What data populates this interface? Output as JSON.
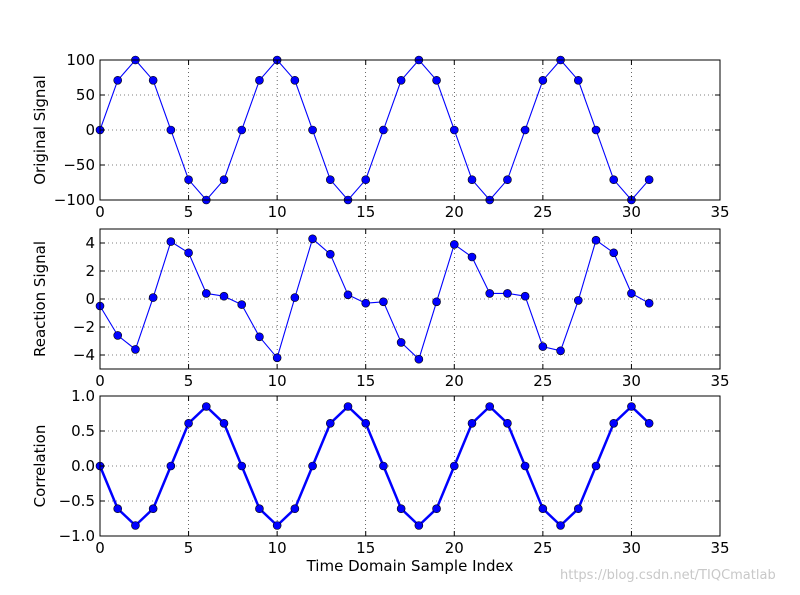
{
  "chart_data": [
    {
      "type": "line",
      "ylabel": "Original Signal",
      "xlabel": "",
      "xlim": [
        0,
        35
      ],
      "ylim": [
        -100,
        100
      ],
      "xticks": [
        0,
        5,
        10,
        15,
        20,
        25,
        30,
        35
      ],
      "yticks": [
        -100,
        -50,
        0,
        50,
        100
      ],
      "xtick_labels": [
        "0",
        "5",
        "10",
        "15",
        "20",
        "25",
        "30",
        "35"
      ],
      "ytick_labels": [
        "−100",
        "−50",
        "0",
        "50",
        "100"
      ],
      "grid": true,
      "series": [
        {
          "color": "#0000ff",
          "marker": "circle",
          "line_style": "thin",
          "x": [
            0,
            1,
            2,
            3,
            4,
            5,
            6,
            7,
            8,
            9,
            10,
            11,
            12,
            13,
            14,
            15,
            16,
            17,
            18,
            19,
            20,
            21,
            22,
            23,
            24,
            25,
            26,
            27,
            28,
            29,
            30,
            31
          ],
          "values": [
            0,
            71,
            100,
            71,
            0,
            -71,
            -100,
            -71,
            0,
            71,
            100,
            71,
            0,
            -71,
            -100,
            -71,
            0,
            71,
            100,
            71,
            0,
            -71,
            -100,
            -71,
            0,
            71,
            100,
            71,
            0,
            -71,
            -100,
            -71
          ]
        }
      ]
    },
    {
      "type": "line",
      "ylabel": "Reaction Signal",
      "xlabel": "",
      "xlim": [
        0,
        35
      ],
      "ylim": [
        -5,
        5
      ],
      "xticks": [
        0,
        5,
        10,
        15,
        20,
        25,
        30,
        35
      ],
      "yticks": [
        -4,
        -2,
        0,
        2,
        4
      ],
      "xtick_labels": [
        "0",
        "5",
        "10",
        "15",
        "20",
        "25",
        "30",
        "35"
      ],
      "ytick_labels": [
        "−4",
        "−2",
        "0",
        "2",
        "4"
      ],
      "grid": true,
      "series": [
        {
          "color": "#0000ff",
          "marker": "circle",
          "line_style": "thin",
          "x": [
            0,
            1,
            2,
            3,
            4,
            5,
            6,
            7,
            8,
            9,
            10,
            11,
            12,
            13,
            14,
            15,
            16,
            17,
            18,
            19,
            20,
            21,
            22,
            23,
            24,
            25,
            26,
            27,
            28,
            29,
            30,
            31
          ],
          "values": [
            -0.5,
            -2.6,
            -3.6,
            0.1,
            4.1,
            3.3,
            0.4,
            0.2,
            -0.4,
            -2.7,
            -4.2,
            0.1,
            4.3,
            3.2,
            0.3,
            -0.3,
            -0.2,
            -3.1,
            -4.3,
            -0.2,
            3.9,
            3.0,
            0.4,
            0.4,
            0.2,
            -3.4,
            -3.7,
            -0.1,
            4.2,
            3.3,
            0.4,
            -0.3
          ]
        }
      ]
    },
    {
      "type": "line",
      "ylabel": "Correlation",
      "xlabel": "Time Domain Sample Index",
      "xlim": [
        0,
        35
      ],
      "ylim": [
        -1.0,
        1.0
      ],
      "xticks": [
        0,
        5,
        10,
        15,
        20,
        25,
        30,
        35
      ],
      "yticks": [
        -1.0,
        -0.5,
        0.0,
        0.5,
        1.0
      ],
      "xtick_labels": [
        "0",
        "5",
        "10",
        "15",
        "20",
        "25",
        "30",
        "35"
      ],
      "ytick_labels": [
        "−1.0",
        "−0.5",
        "0.0",
        "0.5",
        "1.0"
      ],
      "grid": true,
      "series": [
        {
          "color": "#0000ff",
          "marker": "circle",
          "line_style": "thick",
          "x": [
            0,
            1,
            2,
            3,
            4,
            5,
            6,
            7,
            8,
            9,
            10,
            11,
            12,
            13,
            14,
            15,
            16,
            17,
            18,
            19,
            20,
            21,
            22,
            23,
            24,
            25,
            26,
            27,
            28,
            29,
            30,
            31
          ],
          "values": [
            0,
            -0.61,
            -0.85,
            -0.61,
            0,
            0.61,
            0.85,
            0.61,
            0,
            -0.61,
            -0.85,
            -0.61,
            0,
            0.61,
            0.85,
            0.61,
            0,
            -0.61,
            -0.85,
            -0.61,
            0,
            0.61,
            0.85,
            0.61,
            0,
            -0.61,
            -0.85,
            -0.61,
            0,
            0.61,
            0.85,
            0.61
          ]
        }
      ]
    }
  ],
  "watermark": "https://blog.csdn.net/TIQCmatlab"
}
